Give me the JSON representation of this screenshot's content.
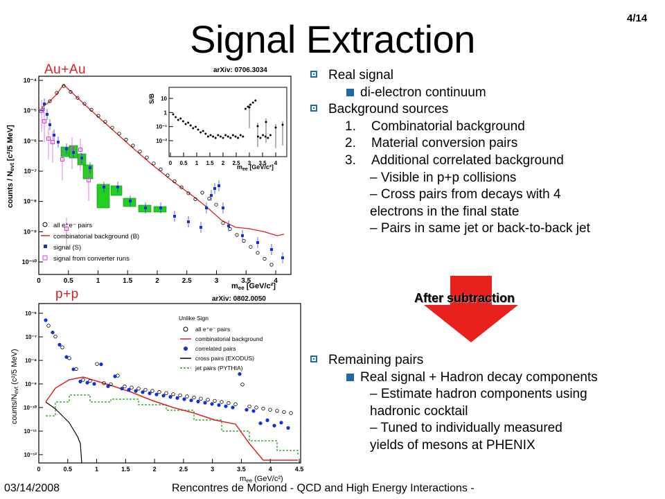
{
  "slide_number": "4/14",
  "title": "Signal Extraction",
  "plots": {
    "aa": {
      "label": "Au+Au",
      "arxiv": "arXiv: 0706.3034",
      "ylabel": "counts / N",
      "ylabel_sub": "evt",
      "ylabel_unit": " [c²/5 MeV]",
      "xlabel": "m",
      "xlabel_sub": "ee",
      "xlabel_unit": " [GeV/c²]",
      "yticks": [
        "10⁻⁴",
        "10⁻⁵",
        "10⁻⁶",
        "10⁻⁷",
        "10⁻⁸",
        "10⁻⁹",
        "10⁻¹⁰"
      ],
      "xticks": [
        "0",
        "0.5",
        "1",
        "1.5",
        "2",
        "2.5",
        "3",
        "3.5",
        "4"
      ],
      "legend": [
        "all e⁺e⁻ pairs",
        "combinatorial background (B)",
        "signal (S)",
        "signal from converter runs"
      ],
      "inset": {
        "ylabel": "S/B",
        "yticks": [
          "10",
          "1",
          "10⁻¹",
          "10⁻²"
        ],
        "xticks": [
          "0",
          "0.5",
          "1",
          "1.5",
          "2",
          "2.5",
          "3",
          "3.5",
          "4"
        ],
        "xlabel": "m",
        "xlabel_sub": "ee",
        "xlabel_unit": " [GeV/c²]"
      }
    },
    "pp": {
      "label": "p+p",
      "arxiv": "arXiv: 0802.0050",
      "ylabel": "counts/N",
      "ylabel_sub": "evt",
      "ylabel_unit": " (c²/5 MeV)",
      "xlabel": "m",
      "xlabel_sub": "ee",
      "xlabel_unit": " (GeV/c²)",
      "yticks": [
        "10⁻⁶",
        "10⁻⁷",
        "10⁻⁸",
        "10⁻⁹",
        "10⁻¹⁰",
        "10⁻¹¹",
        "10⁻¹²"
      ],
      "xticks": [
        "0",
        "0.5",
        "1",
        "1.5",
        "2",
        "2.5",
        "3",
        "3.5",
        "4",
        "4.5"
      ],
      "legend_title": "Unlike Sign",
      "legend": [
        "all e⁺e⁻ pairs",
        "combinatorial background",
        "correlated pairs",
        "cross pairs (EXODUS)",
        "jet pairs (PYTHIA)"
      ]
    }
  },
  "bullets": {
    "real_signal": "Real signal",
    "dielectron": "di-electron continuum",
    "bg_sources": "Background sources",
    "n1": "1.",
    "n1_text": "Combinatorial background",
    "n2": "2.",
    "n2_text": "Material conversion pairs",
    "n3": "3.",
    "n3_text": "Additional correlated background",
    "d1": "– Visible in p+p collisions",
    "d2a": "– Cross pairs from decays with 4",
    "d2b": "electrons in the final state",
    "d3": "– Pairs in same jet or back-to-back jet"
  },
  "after_subtraction": "After subtraction",
  "bullets2": {
    "remaining": "Remaining pairs",
    "real_plus": "Real signal + Hadron decay components",
    "e1a": "– Estimate hadron components using",
    "e1b": "hadronic cocktail",
    "e2a": "– Tuned to individually measured",
    "e2b": "yields of mesons at PHENIX"
  },
  "footer": {
    "date": "03/14/2008",
    "conference": "Rencontres de Moriond - QCD and High Energy Interactions -"
  },
  "colors": {
    "accent": "#1f6aa5",
    "label_red": "#d62020",
    "arrow_red": "#e8201e",
    "bg_line": "#e0201e",
    "signal_blue": "#1030e0",
    "converter_magenta": "#e040e0",
    "green_band": "#22d022"
  }
}
